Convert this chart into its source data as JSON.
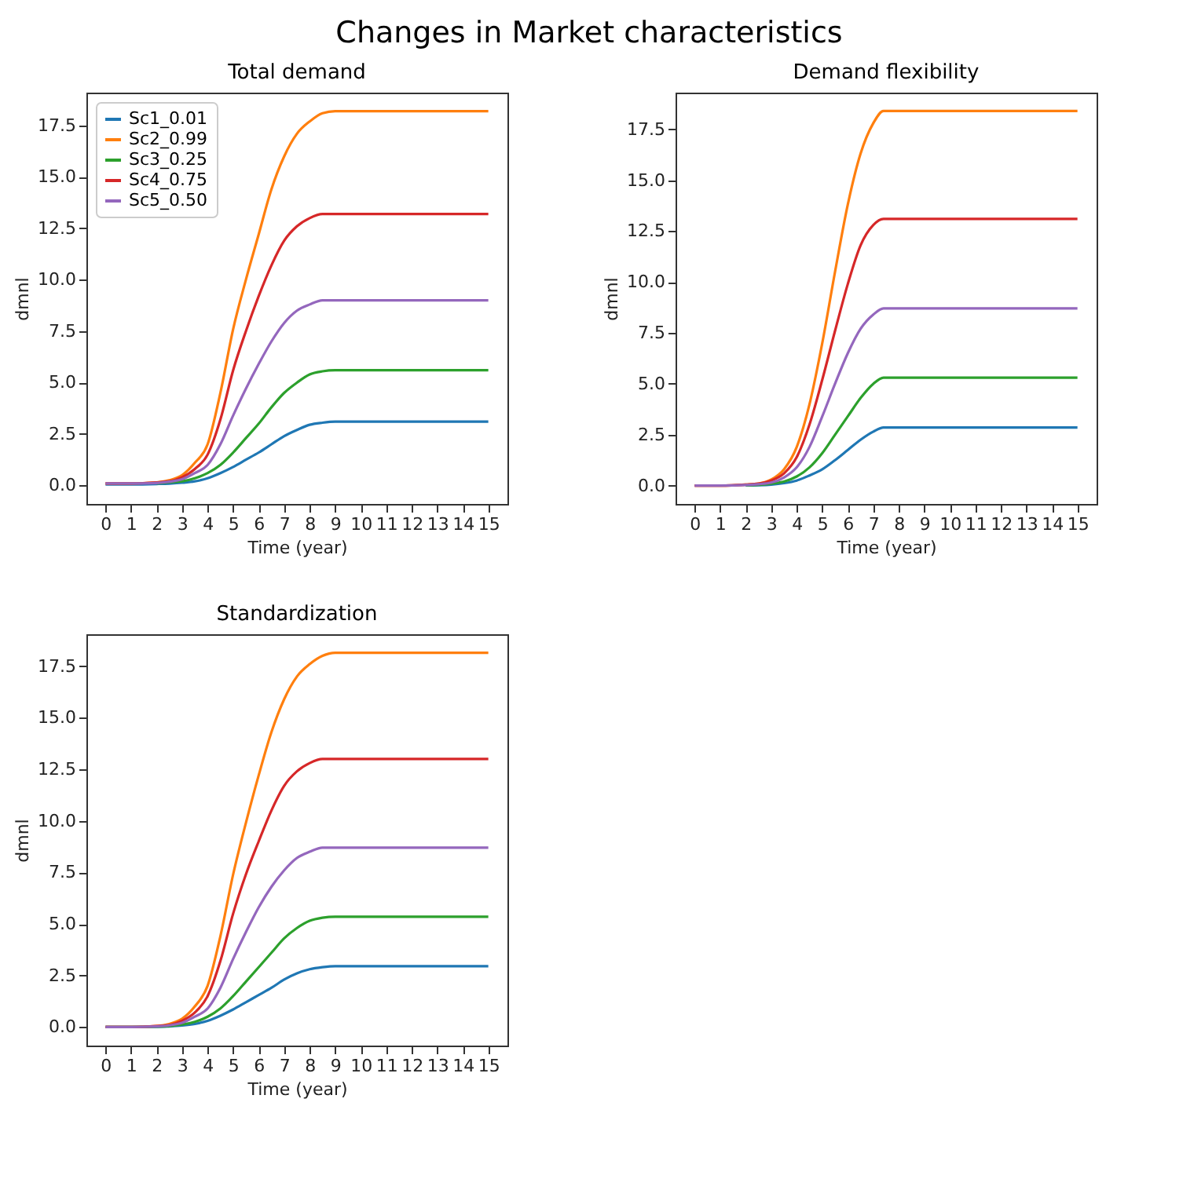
{
  "chart_data": [
    {
      "type": "other",
      "title": "Changes in Market characteristics"
    },
    {
      "type": "line",
      "title": "Total demand",
      "xlabel": "Time (year)",
      "ylabel": "dmnl",
      "legend": "top left",
      "grid": false,
      "x": [
        0,
        1,
        2,
        2.5,
        3,
        3.5,
        4,
        4.5,
        5,
        5.5,
        6,
        6.5,
        7,
        7.5,
        8,
        8.5,
        9,
        10,
        11,
        12,
        13,
        14,
        15
      ],
      "xlim": [
        -0.75,
        15.75
      ],
      "xticks": [
        0,
        1,
        2,
        3,
        4,
        5,
        6,
        7,
        8,
        9,
        10,
        11,
        12,
        13,
        14,
        15
      ],
      "ylim": [
        -0.9,
        19.1
      ],
      "yticks": [
        {
          "value": 0,
          "label": "0.0"
        },
        2.5,
        {
          "value": 5,
          "label": "5.0"
        },
        7.5,
        {
          "value": 10,
          "label": "10.0"
        },
        12.5,
        {
          "value": 15,
          "label": "15.0"
        },
        17.5
      ],
      "series": [
        {
          "name": "Sc1_0.01",
          "color": "#1f77b4",
          "values": [
            0.05,
            0.05,
            0.07,
            0.09,
            0.13,
            0.2,
            0.35,
            0.6,
            0.9,
            1.25,
            1.6,
            2.0,
            2.4,
            2.7,
            2.95,
            3.05,
            3.1,
            3.1,
            3.1,
            3.1,
            3.1,
            3.1,
            3.1
          ]
        },
        {
          "name": "Sc2_0.99",
          "color": "#ff7f0e",
          "values": [
            0.1,
            0.1,
            0.15,
            0.25,
            0.5,
            1.1,
            2.0,
            4.5,
            7.6,
            10.0,
            12.2,
            14.4,
            16.0,
            17.1,
            17.7,
            18.1,
            18.2,
            18.2,
            18.2,
            18.2,
            18.2,
            18.2,
            18.2
          ]
        },
        {
          "name": "Sc3_0.25",
          "color": "#2ca02c",
          "values": [
            null,
            null,
            0.1,
            0.15,
            0.2,
            0.35,
            0.6,
            1.0,
            1.6,
            2.3,
            3.0,
            3.8,
            4.5,
            5.0,
            5.4,
            5.55,
            5.6,
            5.6,
            5.6,
            5.6,
            5.6,
            5.6,
            5.6
          ]
        },
        {
          "name": "Sc4_0.75",
          "color": "#d62728",
          "values": [
            0.1,
            0.1,
            0.15,
            0.2,
            0.4,
            0.8,
            1.5,
            3.2,
            5.6,
            7.5,
            9.2,
            10.7,
            11.9,
            12.6,
            13.0,
            13.2,
            13.2,
            13.2,
            13.2,
            13.2,
            13.2,
            13.2,
            13.2
          ]
        },
        {
          "name": "Sc5_0.50",
          "color": "#9467bd",
          "values": [
            0.1,
            0.1,
            0.12,
            0.18,
            0.3,
            0.6,
            1.0,
            2.0,
            3.4,
            4.7,
            5.9,
            7.0,
            7.9,
            8.5,
            8.8,
            9.0,
            9.0,
            9.0,
            9.0,
            9.0,
            9.0,
            9.0,
            9.0
          ]
        }
      ]
    },
    {
      "type": "line",
      "title": "Demand flexibility",
      "xlabel": "Time (year)",
      "ylabel": "dmnl",
      "grid": false,
      "x": [
        0,
        1,
        2,
        2.5,
        3,
        3.5,
        4,
        4.5,
        5,
        5.5,
        6,
        6.5,
        7,
        7.4,
        8,
        9,
        10,
        11,
        12,
        13,
        14,
        15
      ],
      "xlim": [
        -0.75,
        15.75
      ],
      "xticks": [
        0,
        1,
        2,
        3,
        4,
        5,
        6,
        7,
        8,
        9,
        10,
        11,
        12,
        13,
        14,
        15
      ],
      "ylim": [
        -0.9,
        19.3
      ],
      "yticks": [
        {
          "value": 0,
          "label": "0.0"
        },
        2.5,
        {
          "value": 5,
          "label": "5.0"
        },
        7.5,
        {
          "value": 10,
          "label": "10.0"
        },
        12.5,
        {
          "value": 15,
          "label": "15.0"
        },
        17.5
      ],
      "series": [
        {
          "color": "#1f77b4",
          "values": [
            null,
            null,
            0.01,
            0.02,
            0.05,
            0.12,
            0.25,
            0.5,
            0.8,
            1.25,
            1.75,
            2.25,
            2.65,
            2.85,
            2.85,
            2.85,
            2.85,
            2.85,
            2.85,
            2.85,
            2.85,
            2.85
          ]
        },
        {
          "color": "#ff7f0e",
          "values": [
            0,
            0,
            0.05,
            0.1,
            0.3,
            0.8,
            1.9,
            4.0,
            7.0,
            10.5,
            13.8,
            16.3,
            17.8,
            18.4,
            18.4,
            18.4,
            18.4,
            18.4,
            18.4,
            18.4,
            18.4,
            18.4
          ]
        },
        {
          "color": "#2ca02c",
          "values": [
            null,
            null,
            0.02,
            0.04,
            0.1,
            0.2,
            0.45,
            0.9,
            1.6,
            2.5,
            3.4,
            4.3,
            5.0,
            5.3,
            5.3,
            5.3,
            5.3,
            5.3,
            5.3,
            5.3,
            5.3,
            5.3
          ]
        },
        {
          "color": "#d62728",
          "values": [
            0,
            0,
            0.05,
            0.1,
            0.25,
            0.6,
            1.4,
            3.0,
            5.2,
            7.6,
            9.9,
            11.8,
            12.8,
            13.1,
            13.1,
            13.1,
            13.1,
            13.1,
            13.1,
            13.1,
            13.1,
            13.1
          ]
        },
        {
          "color": "#9467bd",
          "values": [
            0,
            0,
            0.03,
            0.07,
            0.15,
            0.4,
            0.9,
            1.9,
            3.4,
            5.0,
            6.5,
            7.7,
            8.4,
            8.7,
            8.7,
            8.7,
            8.7,
            8.7,
            8.7,
            8.7,
            8.7,
            8.7
          ]
        }
      ]
    },
    {
      "type": "line",
      "title": "Standardization",
      "xlabel": "Time (year)",
      "ylabel": "dmnl",
      "grid": false,
      "x": [
        0,
        1,
        2,
        2.5,
        3,
        3.5,
        4,
        4.5,
        5,
        5.5,
        6,
        6.5,
        7,
        7.5,
        8,
        8.5,
        9,
        10,
        11,
        12,
        13,
        14,
        15
      ],
      "xlim": [
        -0.75,
        15.75
      ],
      "xticks": [
        0,
        1,
        2,
        3,
        4,
        5,
        6,
        7,
        8,
        9,
        10,
        11,
        12,
        13,
        14,
        15
      ],
      "ylim": [
        -0.9,
        19.05
      ],
      "yticks": [
        {
          "value": 0,
          "label": "0.0"
        },
        2.5,
        {
          "value": 5,
          "label": "5.0"
        },
        7.5,
        {
          "value": 10,
          "label": "10.0"
        },
        12.5,
        {
          "value": 15,
          "label": "15.0"
        },
        17.5
      ],
      "series": [
        {
          "color": "#1f77b4",
          "values": [
            0,
            0,
            0.01,
            0.03,
            0.07,
            0.15,
            0.3,
            0.55,
            0.85,
            1.2,
            1.55,
            1.9,
            2.3,
            2.6,
            2.8,
            2.9,
            2.95,
            2.95,
            2.95,
            2.95,
            2.95,
            2.95,
            2.95
          ]
        },
        {
          "color": "#ff7f0e",
          "values": [
            0,
            0,
            0.05,
            0.15,
            0.4,
            1.0,
            2.0,
            4.4,
            7.4,
            9.9,
            12.2,
            14.3,
            15.9,
            17.0,
            17.6,
            18.0,
            18.15,
            18.15,
            18.15,
            18.15,
            18.15,
            18.15,
            18.15
          ]
        },
        {
          "color": "#2ca02c",
          "values": [
            0,
            0,
            0.02,
            0.05,
            0.12,
            0.25,
            0.5,
            0.9,
            1.5,
            2.2,
            2.9,
            3.6,
            4.3,
            4.8,
            5.15,
            5.3,
            5.35,
            5.35,
            5.35,
            5.35,
            5.35,
            5.35,
            5.35
          ]
        },
        {
          "color": "#d62728",
          "values": [
            0,
            0,
            0.05,
            0.1,
            0.3,
            0.7,
            1.5,
            3.2,
            5.5,
            7.4,
            9.0,
            10.5,
            11.7,
            12.4,
            12.8,
            13.0,
            13.0,
            13.0,
            13.0,
            13.0,
            13.0,
            13.0,
            13.0
          ]
        },
        {
          "color": "#9467bd",
          "values": [
            0,
            0,
            0.03,
            0.08,
            0.2,
            0.5,
            0.9,
            1.9,
            3.3,
            4.6,
            5.8,
            6.8,
            7.6,
            8.2,
            8.5,
            8.7,
            8.7,
            8.7,
            8.7,
            8.7,
            8.7,
            8.7,
            8.7
          ]
        }
      ]
    }
  ]
}
